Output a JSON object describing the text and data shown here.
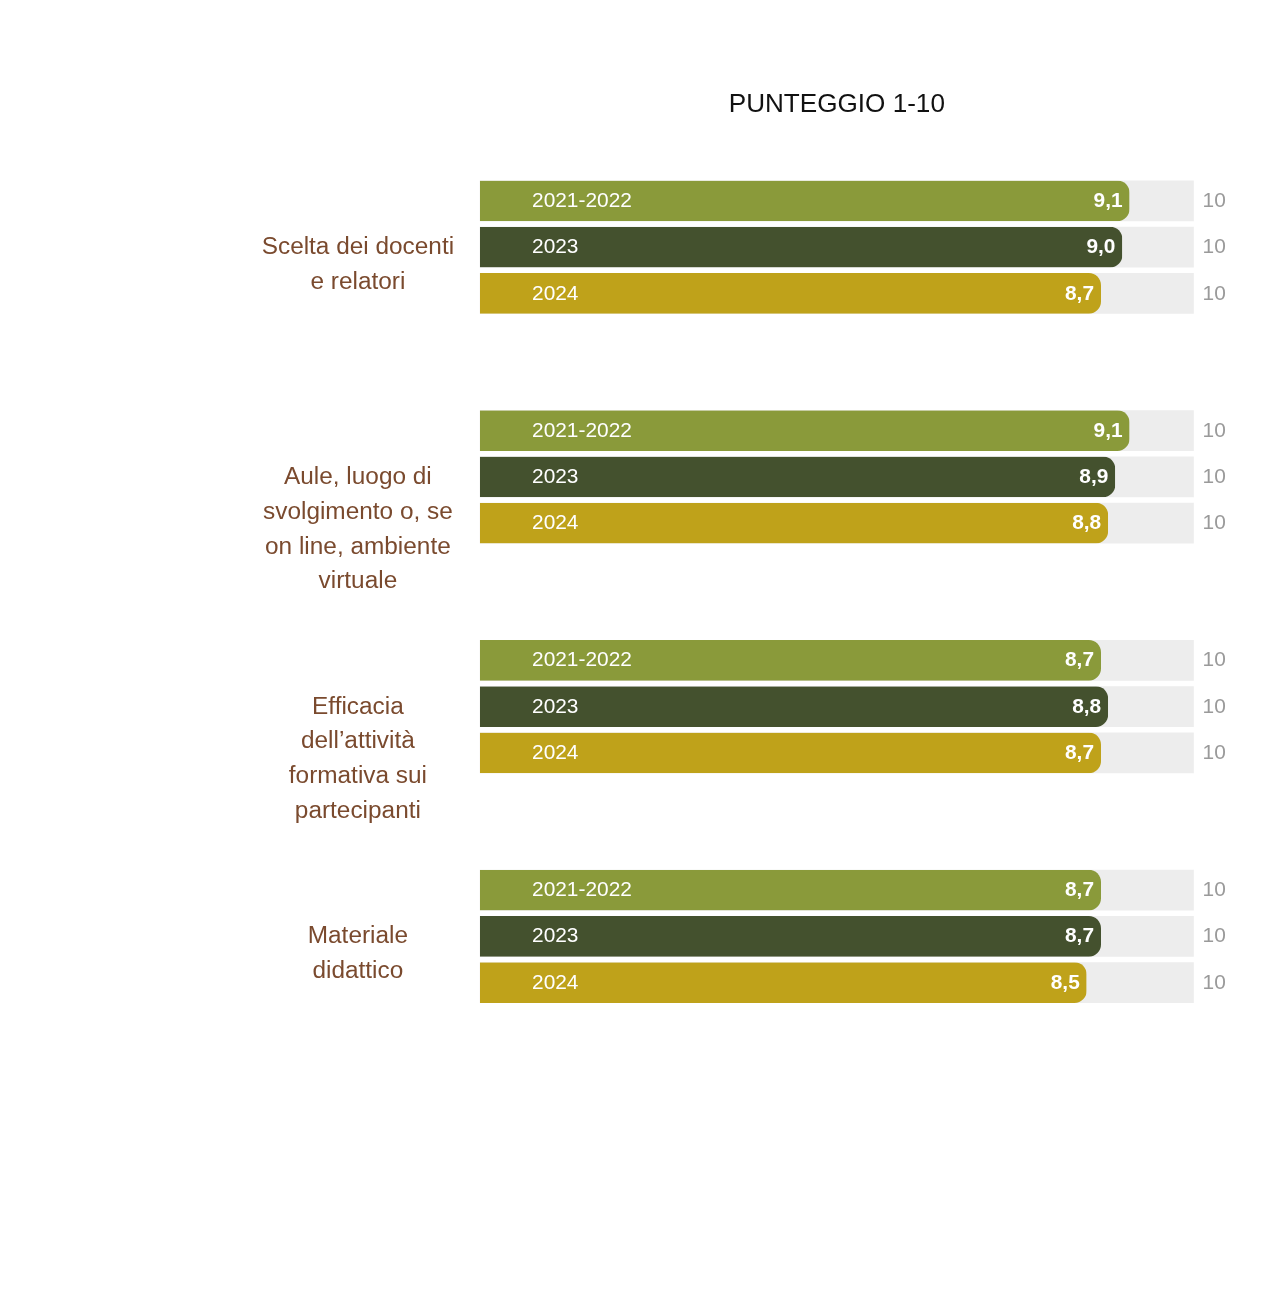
{
  "chart_data": {
    "type": "bar",
    "orientation": "horizontal",
    "title": "PUNTEGGIO 1-10",
    "categories": [
      "Scelta dei docenti e relatori",
      "Aule, luogo di svolgimento o, se on line, ambiente virtuale",
      "Efficacia dell’attività formativa sui partecipanti",
      "Materiale didattico"
    ],
    "series": [
      {
        "name": "2021-2022",
        "color": "#8a9a3a",
        "values": [
          9.1,
          9.1,
          8.7,
          8.7
        ],
        "value_labels": [
          "9,1",
          "9,1",
          "8,7",
          "8,7"
        ]
      },
      {
        "name": "2023",
        "color": "#44512e",
        "values": [
          9.0,
          8.9,
          8.8,
          8.7
        ],
        "value_labels": [
          "9,0",
          "8,9",
          "8,8",
          "8,7"
        ]
      },
      {
        "name": "2024",
        "color": "#bfa21a",
        "values": [
          8.7,
          8.8,
          8.7,
          8.5
        ],
        "value_labels": [
          "8,7",
          "8,8",
          "8,7",
          "8,5"
        ]
      }
    ],
    "xlim": [
      0,
      10
    ],
    "legend": false,
    "annotations": [
      "10",
      "10",
      "10",
      "10",
      "10",
      "10",
      "10",
      "10",
      "10",
      "10",
      "10",
      "10"
    ]
  }
}
